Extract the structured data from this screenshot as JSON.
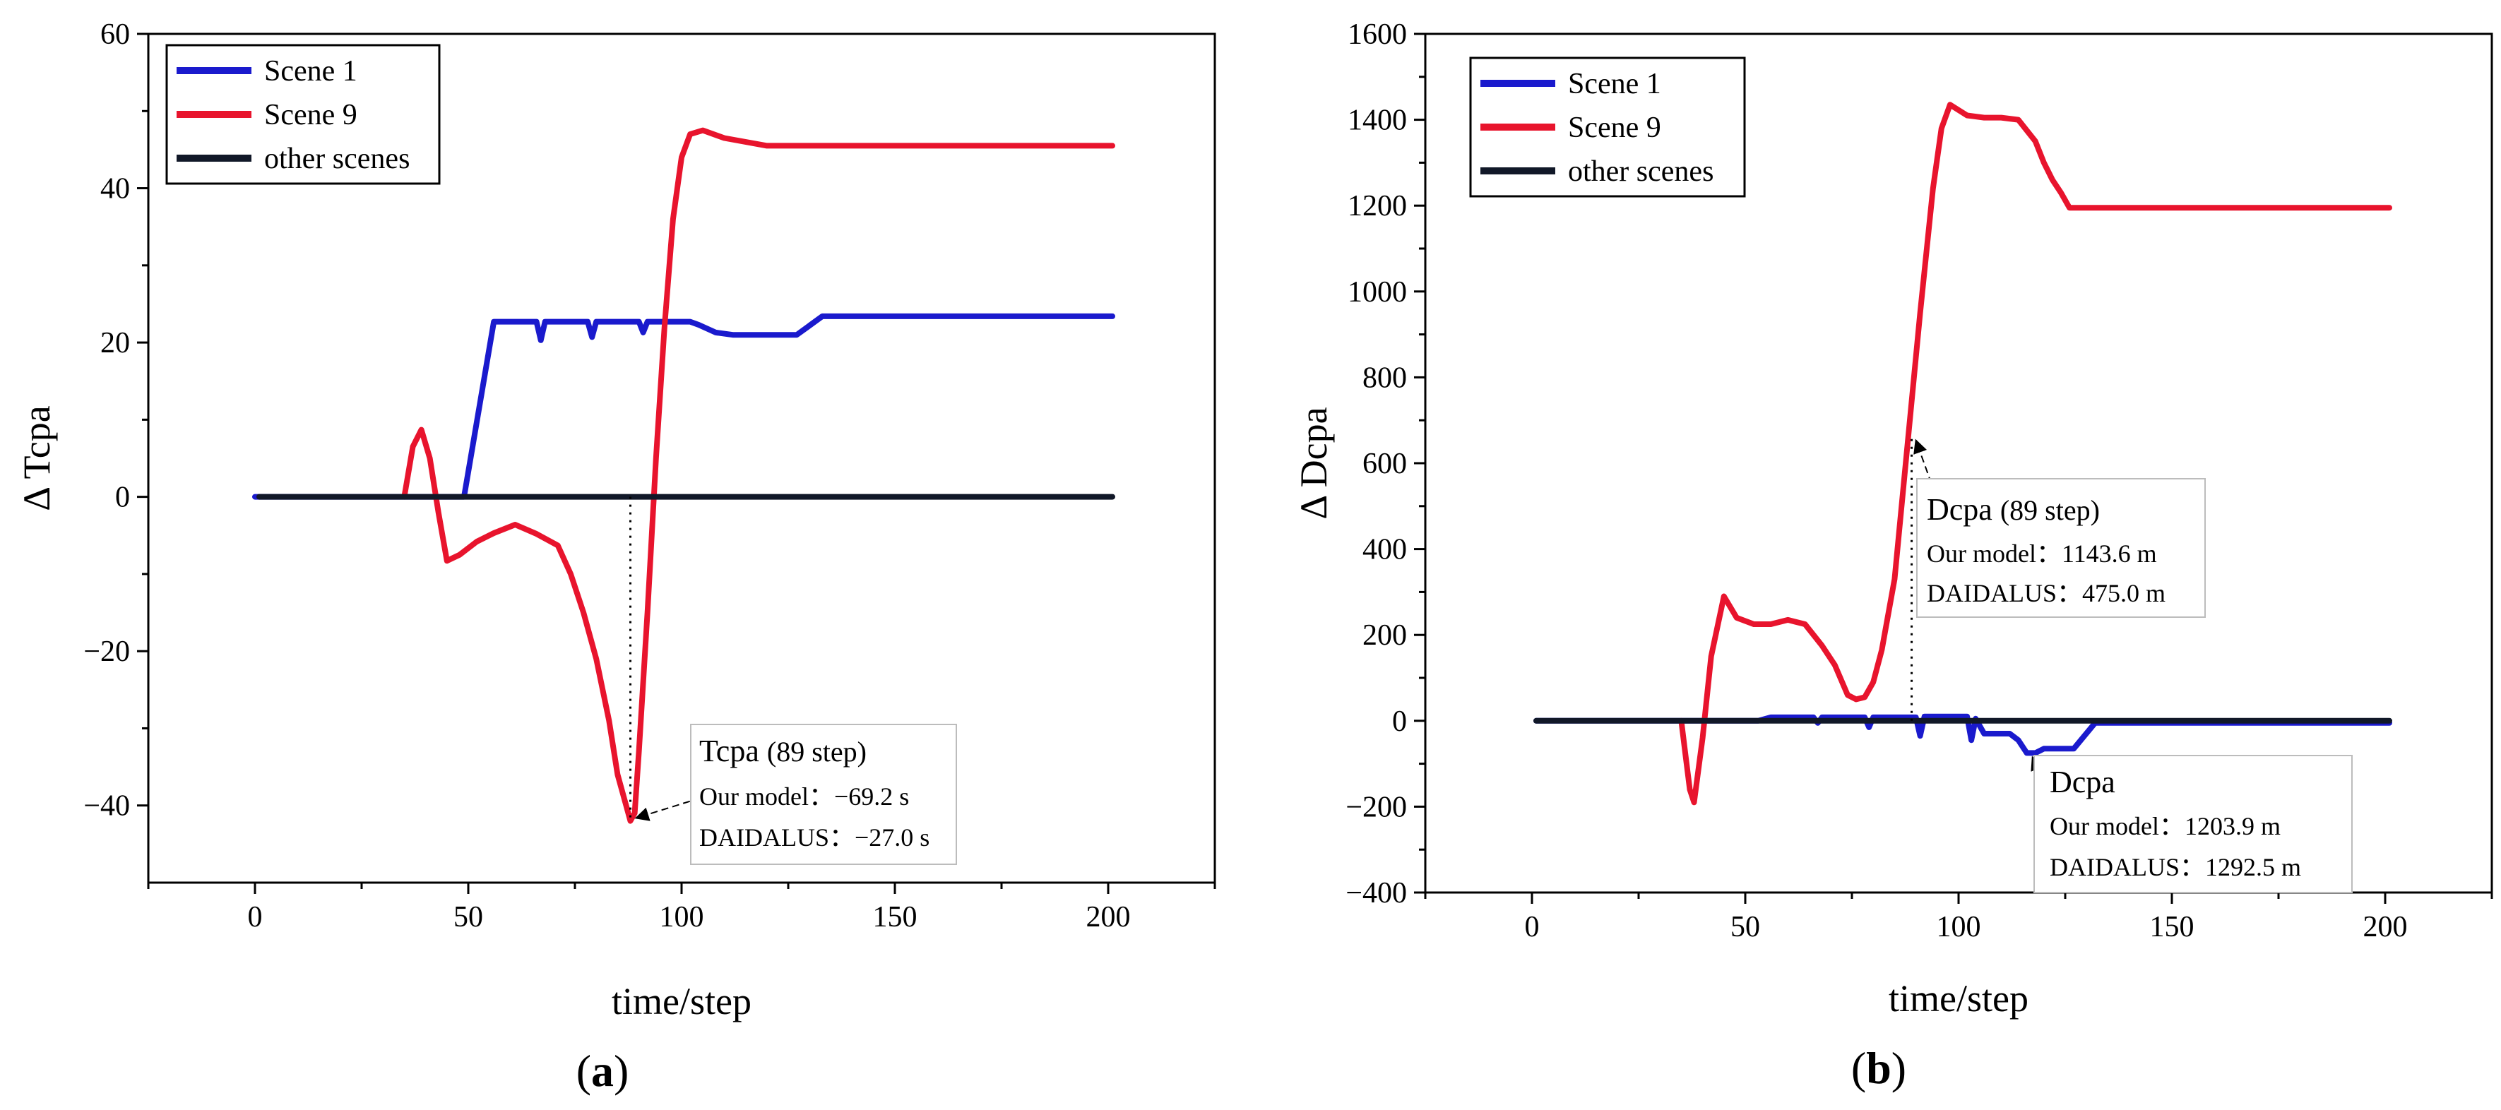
{
  "chart_data": [
    {
      "type": "line",
      "panel_label": "a",
      "xlabel": "time/step",
      "ylabel": "Δ Tcpa",
      "xlim": [
        -25,
        225
      ],
      "ylim": [
        -50,
        60
      ],
      "xticks": [
        0,
        50,
        100,
        150,
        200
      ],
      "yticks": [
        -40,
        -20,
        0,
        20,
        40,
        60
      ],
      "xtick_labels": [
        "0",
        "50",
        "100",
        "150",
        "200"
      ],
      "ytick_labels": [
        "−40",
        "−20",
        "0",
        "20",
        "40",
        "60"
      ],
      "legend": {
        "placement": "top-left",
        "entries": [
          "Scene 1",
          "Scene 9",
          "other scenes"
        ]
      },
      "series": [
        {
          "name": "Scene 1",
          "color": "#1a1acd",
          "x": [
            0,
            49,
            56,
            66,
            67,
            68,
            70,
            78,
            79,
            80,
            82,
            90,
            91,
            92,
            94,
            102,
            104,
            108,
            112,
            127,
            133,
            201
          ],
          "y": [
            0,
            0,
            22.7,
            22.7,
            20.3,
            22.7,
            22.7,
            22.7,
            20.7,
            22.7,
            22.7,
            22.7,
            21.3,
            22.7,
            22.7,
            22.7,
            22.3,
            21.3,
            21.0,
            21.0,
            23.4,
            23.4
          ]
        },
        {
          "name": "Scene 9",
          "color": "#e8142d",
          "x": [
            35,
            37,
            39,
            41,
            43,
            45,
            48,
            52,
            56,
            61,
            66,
            71,
            74,
            77,
            80,
            83,
            85,
            87,
            88,
            89,
            90,
            92,
            94,
            96,
            98,
            100,
            102,
            105,
            110,
            120,
            201
          ],
          "y": [
            0,
            6.5,
            8.7,
            5,
            -2,
            -8.3,
            -7.5,
            -5.8,
            -4.7,
            -3.6,
            -4.8,
            -6.3,
            -10,
            -15,
            -21,
            -29,
            -36,
            -40,
            -42,
            -41,
            -33,
            -15,
            5,
            22,
            36,
            44,
            47,
            47.5,
            46.5,
            45.5,
            45.5
          ]
        },
        {
          "name": "other scenes",
          "color": "#111828",
          "x": [
            1,
            201
          ],
          "y": [
            0,
            0
          ]
        }
      ],
      "annotation": {
        "title": "Tcpa",
        "title_suffix": "(89 step)",
        "line1": "Our model：−69.2 s",
        "line2": "DAIDALUS：−27.0 s",
        "x": 88,
        "y": -42
      }
    },
    {
      "type": "line",
      "panel_label": "b",
      "xlabel": "time/step",
      "ylabel": "Δ Dcpa",
      "xlim": [
        -25,
        225
      ],
      "ylim": [
        -400,
        1600
      ],
      "xticks": [
        0,
        50,
        100,
        150,
        200
      ],
      "yticks": [
        -400,
        -200,
        0,
        200,
        400,
        600,
        800,
        1000,
        1200,
        1400,
        1600
      ],
      "xtick_labels": [
        "0",
        "50",
        "100",
        "150",
        "200"
      ],
      "ytick_labels": [
        "−400",
        "−200",
        "0",
        "200",
        "400",
        "600",
        "800",
        "1000",
        "1200",
        "1400",
        "1600"
      ],
      "legend": {
        "placement": "top-left",
        "entries": [
          "Scene 1",
          "Scene 9",
          "other scenes"
        ]
      },
      "series": [
        {
          "name": "Scene 1",
          "color": "#1a1acd",
          "x": [
            1,
            53,
            56,
            66,
            67,
            68,
            78,
            79,
            80,
            88,
            90,
            91,
            92,
            102,
            103,
            104,
            106,
            109,
            112,
            114,
            116,
            118,
            120,
            122,
            124,
            127,
            132,
            201
          ],
          "y": [
            0,
            0,
            8,
            8,
            -5,
            8,
            8,
            -15,
            8,
            8,
            8,
            -35,
            10,
            10,
            -45,
            5,
            -30,
            -30,
            -30,
            -45,
            -75,
            -75,
            -65,
            -65,
            -65,
            -65,
            -5,
            -5
          ]
        },
        {
          "name": "Scene 9",
          "color": "#e8142d",
          "x": [
            35,
            36,
            37,
            38,
            40,
            42,
            45,
            48,
            52,
            56,
            60,
            64,
            68,
            71,
            74,
            76,
            78,
            80,
            82,
            85,
            88,
            91,
            94,
            96,
            98,
            102,
            106,
            110,
            114,
            118,
            120,
            122,
            124,
            126,
            201
          ],
          "y": [
            0,
            -80,
            -160,
            -190,
            -40,
            150,
            290,
            240,
            225,
            225,
            235,
            225,
            175,
            130,
            60,
            50,
            55,
            90,
            165,
            330,
            640,
            950,
            1240,
            1380,
            1435,
            1410,
            1405,
            1405,
            1400,
            1350,
            1300,
            1260,
            1230,
            1195,
            1195
          ]
        },
        {
          "name": "other scenes",
          "color": "#111828",
          "x": [
            1,
            201
          ],
          "y": [
            0,
            0
          ]
        }
      ],
      "annotations": [
        {
          "title": "Dcpa",
          "title_suffix": "(89 step)",
          "line1": "Our model：1143.6 m",
          "line2": "DAIDALUS：475.0 m",
          "x": 89,
          "y": 660
        },
        {
          "title": "Dcpa",
          "title_suffix": "",
          "line1": "Our model：1203.9 m",
          "line2": "DAIDALUS：1292.5 m",
          "x": 116,
          "y": -75
        }
      ]
    }
  ]
}
